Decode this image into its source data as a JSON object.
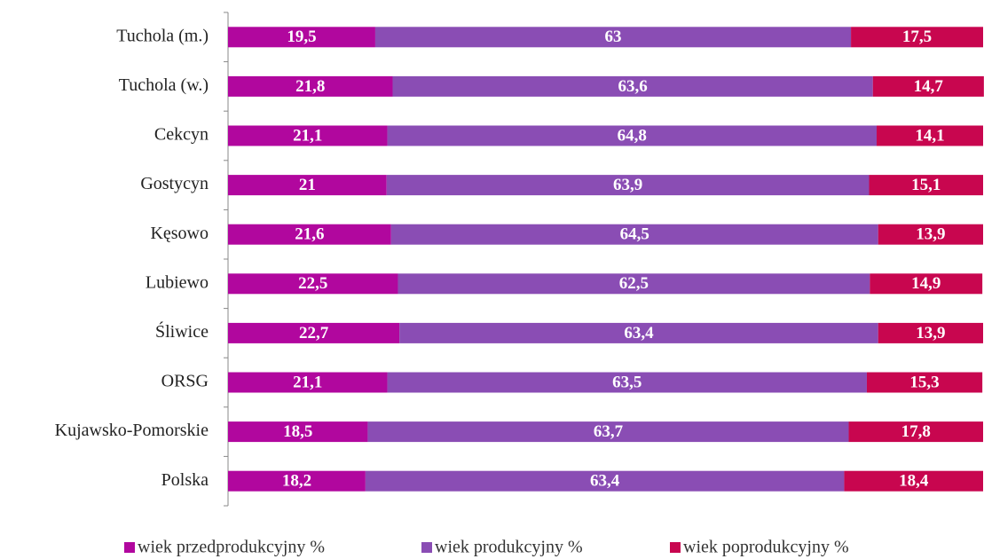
{
  "chart_data": {
    "type": "stacked_barh",
    "categories": [
      "Tuchola (m.)",
      "Tuchola (w.)",
      "Cekcyn",
      "Gostycyn",
      "Kęsowo",
      "Lubiewo",
      "Śliwice",
      "ORSG",
      "Kujawsko-Pomorskie",
      "Polska"
    ],
    "series": [
      {
        "name": "wiek przedprodukcyjny %",
        "color": "#b1079e",
        "values": [
          19.5,
          21.8,
          21.1,
          21,
          21.6,
          22.5,
          22.7,
          21.1,
          18.5,
          18.2
        ],
        "value_labels": [
          "19,5",
          "21,8",
          "21,1",
          "21",
          "21,6",
          "22,5",
          "22,7",
          "21,1",
          "18,5",
          "18,2"
        ]
      },
      {
        "name": "wiek produkcyjny %",
        "color": "#8a4db4",
        "values": [
          63,
          63.6,
          64.8,
          63.9,
          64.5,
          62.5,
          63.4,
          63.5,
          63.7,
          63.4
        ],
        "value_labels": [
          "63",
          "63,6",
          "64,8",
          "63,9",
          "64,5",
          "62,5",
          "63,4",
          "63,5",
          "63,7",
          "63,4"
        ]
      },
      {
        "name": "wiek poprodukcyjny %",
        "color": "#c8064f",
        "values": [
          17.5,
          14.7,
          14.1,
          15.1,
          13.9,
          14.9,
          13.9,
          15.3,
          17.8,
          18.4
        ],
        "value_labels": [
          "17,5",
          "14,7",
          "14,1",
          "15,1",
          "13,9",
          "14,9",
          "13,9",
          "15,3",
          "17,8",
          "18,4"
        ]
      }
    ],
    "xlim": [
      0,
      100
    ]
  }
}
